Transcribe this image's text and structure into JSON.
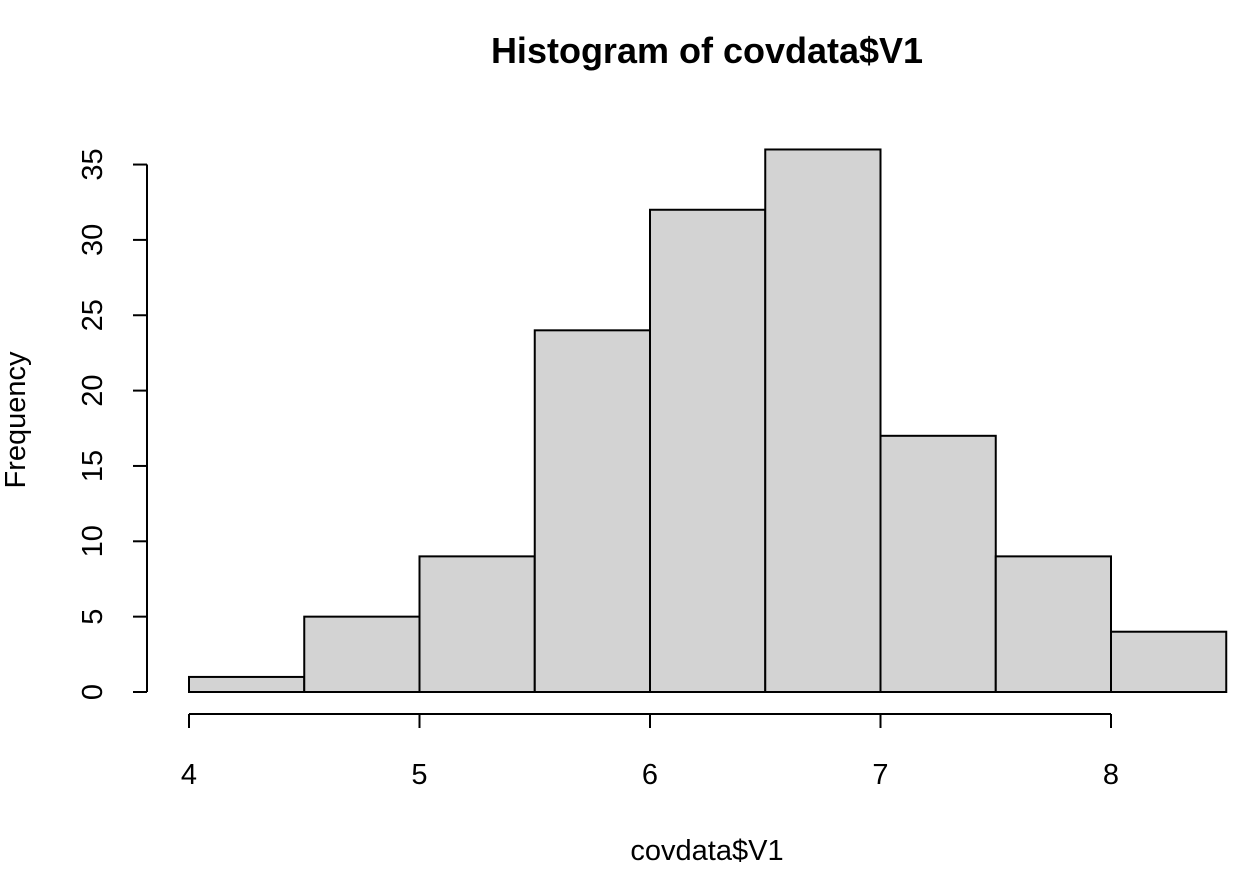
{
  "chart_data": {
    "type": "bar",
    "title": "Histogram of covdata$V1",
    "xlabel": "covdata$V1",
    "ylabel": "Frequency",
    "bins": [
      {
        "start": 4.0,
        "end": 4.5,
        "count": 1
      },
      {
        "start": 4.5,
        "end": 5.0,
        "count": 5
      },
      {
        "start": 5.0,
        "end": 5.5,
        "count": 9
      },
      {
        "start": 5.5,
        "end": 6.0,
        "count": 24
      },
      {
        "start": 6.0,
        "end": 6.5,
        "count": 32
      },
      {
        "start": 6.5,
        "end": 7.0,
        "count": 36
      },
      {
        "start": 7.0,
        "end": 7.5,
        "count": 17
      },
      {
        "start": 7.5,
        "end": 8.0,
        "count": 9
      },
      {
        "start": 8.0,
        "end": 8.5,
        "count": 4
      }
    ],
    "x_ticks": [
      4,
      5,
      6,
      7,
      8
    ],
    "y_ticks": [
      0,
      5,
      10,
      15,
      20,
      25,
      30,
      35
    ],
    "xlim": [
      4,
      8.5
    ],
    "ylim": [
      0,
      36
    ],
    "bar_color": "#d3d3d3",
    "grid": false
  }
}
